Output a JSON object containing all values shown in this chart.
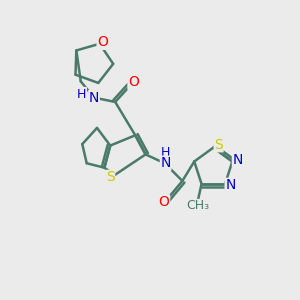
{
  "background_color": "#ebebeb",
  "bond_color": "#4a7a6a",
  "bond_width": 1.8,
  "atom_colors": {
    "O": "#ff0000",
    "N": "#0000cc",
    "S": "#cccc00",
    "H": "#4a7a6a",
    "C": "#4a7a6a"
  },
  "font_size_atom": 10,
  "font_size_small": 9
}
